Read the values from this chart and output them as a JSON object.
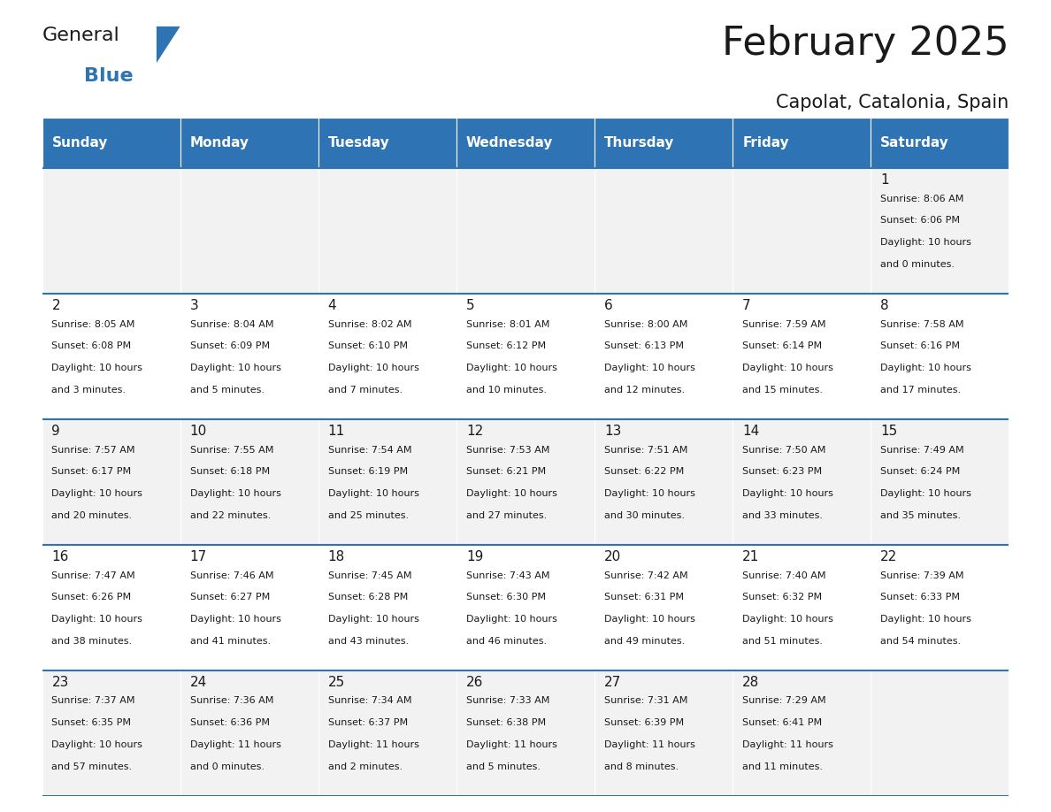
{
  "title": "February 2025",
  "subtitle": "Capolat, Catalonia, Spain",
  "header_bg": "#2E74B5",
  "header_text": "#FFFFFF",
  "row_bg_even": "#F2F2F2",
  "row_bg_odd": "#FFFFFF",
  "day_headers": [
    "Sunday",
    "Monday",
    "Tuesday",
    "Wednesday",
    "Thursday",
    "Friday",
    "Saturday"
  ],
  "days": [
    {
      "day": 1,
      "col": 6,
      "row": 0,
      "sunrise": "8:06 AM",
      "sunset": "6:06 PM",
      "daylight": "10 hours and 0 minutes."
    },
    {
      "day": 2,
      "col": 0,
      "row": 1,
      "sunrise": "8:05 AM",
      "sunset": "6:08 PM",
      "daylight": "10 hours and 3 minutes."
    },
    {
      "day": 3,
      "col": 1,
      "row": 1,
      "sunrise": "8:04 AM",
      "sunset": "6:09 PM",
      "daylight": "10 hours and 5 minutes."
    },
    {
      "day": 4,
      "col": 2,
      "row": 1,
      "sunrise": "8:02 AM",
      "sunset": "6:10 PM",
      "daylight": "10 hours and 7 minutes."
    },
    {
      "day": 5,
      "col": 3,
      "row": 1,
      "sunrise": "8:01 AM",
      "sunset": "6:12 PM",
      "daylight": "10 hours and 10 minutes."
    },
    {
      "day": 6,
      "col": 4,
      "row": 1,
      "sunrise": "8:00 AM",
      "sunset": "6:13 PM",
      "daylight": "10 hours and 12 minutes."
    },
    {
      "day": 7,
      "col": 5,
      "row": 1,
      "sunrise": "7:59 AM",
      "sunset": "6:14 PM",
      "daylight": "10 hours and 15 minutes."
    },
    {
      "day": 8,
      "col": 6,
      "row": 1,
      "sunrise": "7:58 AM",
      "sunset": "6:16 PM",
      "daylight": "10 hours and 17 minutes."
    },
    {
      "day": 9,
      "col": 0,
      "row": 2,
      "sunrise": "7:57 AM",
      "sunset": "6:17 PM",
      "daylight": "10 hours and 20 minutes."
    },
    {
      "day": 10,
      "col": 1,
      "row": 2,
      "sunrise": "7:55 AM",
      "sunset": "6:18 PM",
      "daylight": "10 hours and 22 minutes."
    },
    {
      "day": 11,
      "col": 2,
      "row": 2,
      "sunrise": "7:54 AM",
      "sunset": "6:19 PM",
      "daylight": "10 hours and 25 minutes."
    },
    {
      "day": 12,
      "col": 3,
      "row": 2,
      "sunrise": "7:53 AM",
      "sunset": "6:21 PM",
      "daylight": "10 hours and 27 minutes."
    },
    {
      "day": 13,
      "col": 4,
      "row": 2,
      "sunrise": "7:51 AM",
      "sunset": "6:22 PM",
      "daylight": "10 hours and 30 minutes."
    },
    {
      "day": 14,
      "col": 5,
      "row": 2,
      "sunrise": "7:50 AM",
      "sunset": "6:23 PM",
      "daylight": "10 hours and 33 minutes."
    },
    {
      "day": 15,
      "col": 6,
      "row": 2,
      "sunrise": "7:49 AM",
      "sunset": "6:24 PM",
      "daylight": "10 hours and 35 minutes."
    },
    {
      "day": 16,
      "col": 0,
      "row": 3,
      "sunrise": "7:47 AM",
      "sunset": "6:26 PM",
      "daylight": "10 hours and 38 minutes."
    },
    {
      "day": 17,
      "col": 1,
      "row": 3,
      "sunrise": "7:46 AM",
      "sunset": "6:27 PM",
      "daylight": "10 hours and 41 minutes."
    },
    {
      "day": 18,
      "col": 2,
      "row": 3,
      "sunrise": "7:45 AM",
      "sunset": "6:28 PM",
      "daylight": "10 hours and 43 minutes."
    },
    {
      "day": 19,
      "col": 3,
      "row": 3,
      "sunrise": "7:43 AM",
      "sunset": "6:30 PM",
      "daylight": "10 hours and 46 minutes."
    },
    {
      "day": 20,
      "col": 4,
      "row": 3,
      "sunrise": "7:42 AM",
      "sunset": "6:31 PM",
      "daylight": "10 hours and 49 minutes."
    },
    {
      "day": 21,
      "col": 5,
      "row": 3,
      "sunrise": "7:40 AM",
      "sunset": "6:32 PM",
      "daylight": "10 hours and 51 minutes."
    },
    {
      "day": 22,
      "col": 6,
      "row": 3,
      "sunrise": "7:39 AM",
      "sunset": "6:33 PM",
      "daylight": "10 hours and 54 minutes."
    },
    {
      "day": 23,
      "col": 0,
      "row": 4,
      "sunrise": "7:37 AM",
      "sunset": "6:35 PM",
      "daylight": "10 hours and 57 minutes."
    },
    {
      "day": 24,
      "col": 1,
      "row": 4,
      "sunrise": "7:36 AM",
      "sunset": "6:36 PM",
      "daylight": "11 hours and 0 minutes."
    },
    {
      "day": 25,
      "col": 2,
      "row": 4,
      "sunrise": "7:34 AM",
      "sunset": "6:37 PM",
      "daylight": "11 hours and 2 minutes."
    },
    {
      "day": 26,
      "col": 3,
      "row": 4,
      "sunrise": "7:33 AM",
      "sunset": "6:38 PM",
      "daylight": "11 hours and 5 minutes."
    },
    {
      "day": 27,
      "col": 4,
      "row": 4,
      "sunrise": "7:31 AM",
      "sunset": "6:39 PM",
      "daylight": "11 hours and 8 minutes."
    },
    {
      "day": 28,
      "col": 5,
      "row": 4,
      "sunrise": "7:29 AM",
      "sunset": "6:41 PM",
      "daylight": "11 hours and 11 minutes."
    }
  ],
  "logo_general_color": "#1A1A1A",
  "logo_blue_color": "#2E74B5",
  "logo_triangle_color": "#2E74B5",
  "title_color": "#1A1A1A",
  "subtitle_color": "#1A1A1A",
  "title_fontsize": 32,
  "subtitle_fontsize": 15,
  "header_fontsize": 11,
  "day_num_fontsize": 11,
  "day_text_fontsize": 8
}
